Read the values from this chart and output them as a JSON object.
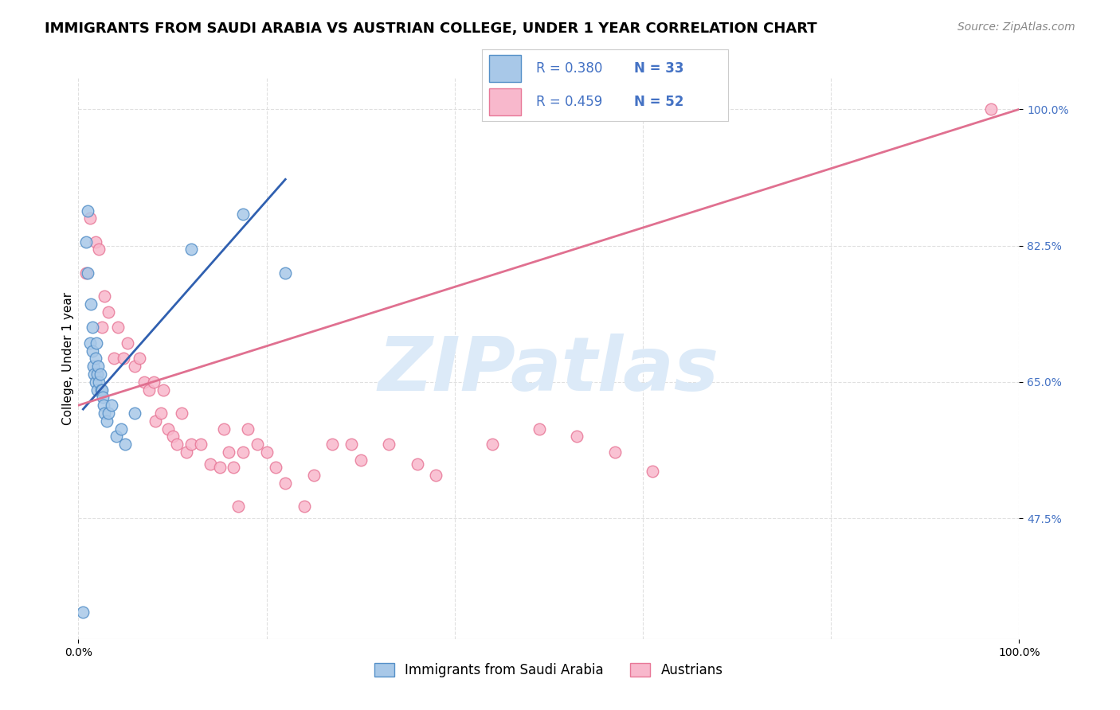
{
  "title": "IMMIGRANTS FROM SAUDI ARABIA VS AUSTRIAN COLLEGE, UNDER 1 YEAR CORRELATION CHART",
  "source_text": "Source: ZipAtlas.com",
  "ylabel": "College, Under 1 year",
  "xmin": 0.0,
  "xmax": 1.0,
  "ymin": 0.32,
  "ymax": 1.04,
  "yticks": [
    0.475,
    0.65,
    0.825,
    1.0
  ],
  "ytick_labels": [
    "47.5%",
    "65.0%",
    "82.5%",
    "100.0%"
  ],
  "blue_R": 0.38,
  "blue_N": 33,
  "pink_R": 0.459,
  "pink_N": 52,
  "blue_color": "#a8c8e8",
  "blue_edge_color": "#5590c8",
  "blue_line_color": "#3060b0",
  "pink_color": "#f8b8cc",
  "pink_edge_color": "#e87898",
  "pink_line_color": "#e07090",
  "legend_color": "#4472c4",
  "watermark_color": "#dceaf8",
  "background_color": "#ffffff",
  "grid_color": "#e0e0e0",
  "blue_scatter_x": [
    0.005,
    0.008,
    0.01,
    0.01,
    0.012,
    0.013,
    0.015,
    0.015,
    0.016,
    0.017,
    0.018,
    0.018,
    0.019,
    0.02,
    0.02,
    0.021,
    0.022,
    0.023,
    0.024,
    0.025,
    0.026,
    0.027,
    0.028,
    0.03,
    0.032,
    0.035,
    0.04,
    0.045,
    0.05,
    0.06,
    0.12,
    0.175,
    0.22
  ],
  "blue_scatter_y": [
    0.355,
    0.83,
    0.79,
    0.87,
    0.7,
    0.75,
    0.69,
    0.72,
    0.67,
    0.66,
    0.65,
    0.68,
    0.7,
    0.66,
    0.64,
    0.67,
    0.65,
    0.66,
    0.64,
    0.64,
    0.63,
    0.62,
    0.61,
    0.6,
    0.61,
    0.62,
    0.58,
    0.59,
    0.57,
    0.61,
    0.82,
    0.865,
    0.79
  ],
  "pink_scatter_x": [
    0.008,
    0.012,
    0.018,
    0.022,
    0.025,
    0.028,
    0.032,
    0.038,
    0.042,
    0.048,
    0.052,
    0.06,
    0.065,
    0.07,
    0.075,
    0.08,
    0.082,
    0.088,
    0.09,
    0.095,
    0.1,
    0.105,
    0.11,
    0.115,
    0.12,
    0.13,
    0.14,
    0.15,
    0.155,
    0.16,
    0.165,
    0.17,
    0.175,
    0.18,
    0.19,
    0.2,
    0.21,
    0.22,
    0.24,
    0.25,
    0.27,
    0.29,
    0.3,
    0.33,
    0.36,
    0.38,
    0.44,
    0.49,
    0.53,
    0.57,
    0.61,
    0.97
  ],
  "pink_scatter_y": [
    0.79,
    0.86,
    0.83,
    0.82,
    0.72,
    0.76,
    0.74,
    0.68,
    0.72,
    0.68,
    0.7,
    0.67,
    0.68,
    0.65,
    0.64,
    0.65,
    0.6,
    0.61,
    0.64,
    0.59,
    0.58,
    0.57,
    0.61,
    0.56,
    0.57,
    0.57,
    0.545,
    0.54,
    0.59,
    0.56,
    0.54,
    0.49,
    0.56,
    0.59,
    0.57,
    0.56,
    0.54,
    0.52,
    0.49,
    0.53,
    0.57,
    0.57,
    0.55,
    0.57,
    0.545,
    0.53,
    0.57,
    0.59,
    0.58,
    0.56,
    0.535,
    1.0
  ],
  "blue_line_x": [
    0.005,
    0.22
  ],
  "blue_line_y": [
    0.615,
    0.91
  ],
  "pink_line_x": [
    0.0,
    1.0
  ],
  "pink_line_y": [
    0.62,
    1.0
  ],
  "title_fontsize": 13,
  "axis_label_fontsize": 11,
  "tick_fontsize": 10,
  "legend_fontsize": 13,
  "source_fontsize": 10
}
